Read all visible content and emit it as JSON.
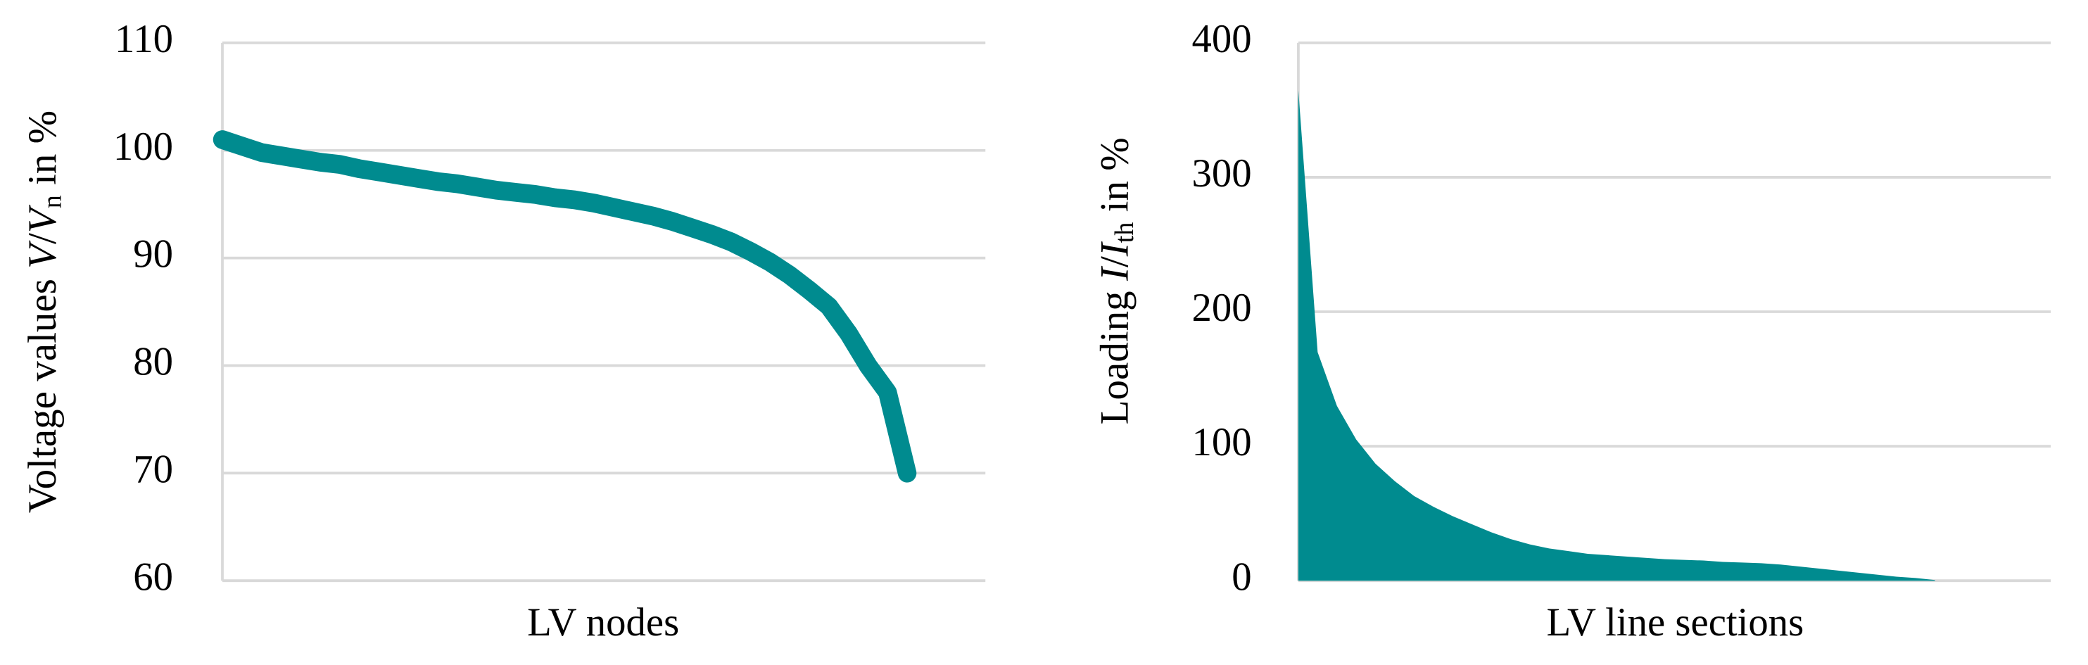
{
  "chart_data": [
    {
      "type": "line",
      "color": "#008b8f",
      "ylabel": [
        "Voltage values ",
        "V",
        "/",
        "V",
        "n",
        " in %"
      ],
      "xlabel": "LV nodes",
      "values": [
        101,
        100.4,
        99.8,
        99.5,
        99.2,
        98.9,
        98.7,
        98.3,
        98.0,
        97.7,
        97.4,
        97.1,
        96.9,
        96.6,
        96.3,
        96.1,
        95.9,
        95.6,
        95.4,
        95.1,
        94.7,
        94.3,
        93.9,
        93.4,
        92.8,
        92.2,
        91.5,
        90.6,
        89.6,
        88.4,
        87.0,
        85.5,
        83.0,
        80.0,
        77.5,
        70,
        null,
        null,
        null,
        null
      ],
      "ylim": [
        60,
        110
      ],
      "yticks": [
        60,
        70,
        80,
        90,
        100,
        110
      ],
      "grid": true
    },
    {
      "type": "area",
      "color": "#008b8f",
      "ylabel": [
        "Loading ",
        "I",
        "/",
        "I",
        "th",
        " in %"
      ],
      "xlabel": "LV line sections",
      "values": [
        365,
        170,
        130,
        105,
        87,
        74,
        63,
        55,
        48,
        42,
        36,
        31,
        27,
        24,
        22,
        20,
        19,
        18,
        17,
        16,
        15.5,
        15,
        14,
        13.5,
        13,
        12,
        10.5,
        9,
        7.5,
        6,
        4.5,
        3,
        2,
        0.5,
        null,
        null,
        null,
        null,
        null,
        null
      ],
      "ylim": [
        0,
        400
      ],
      "yticks": [
        0,
        100,
        200,
        300,
        400
      ],
      "grid": true
    }
  ]
}
